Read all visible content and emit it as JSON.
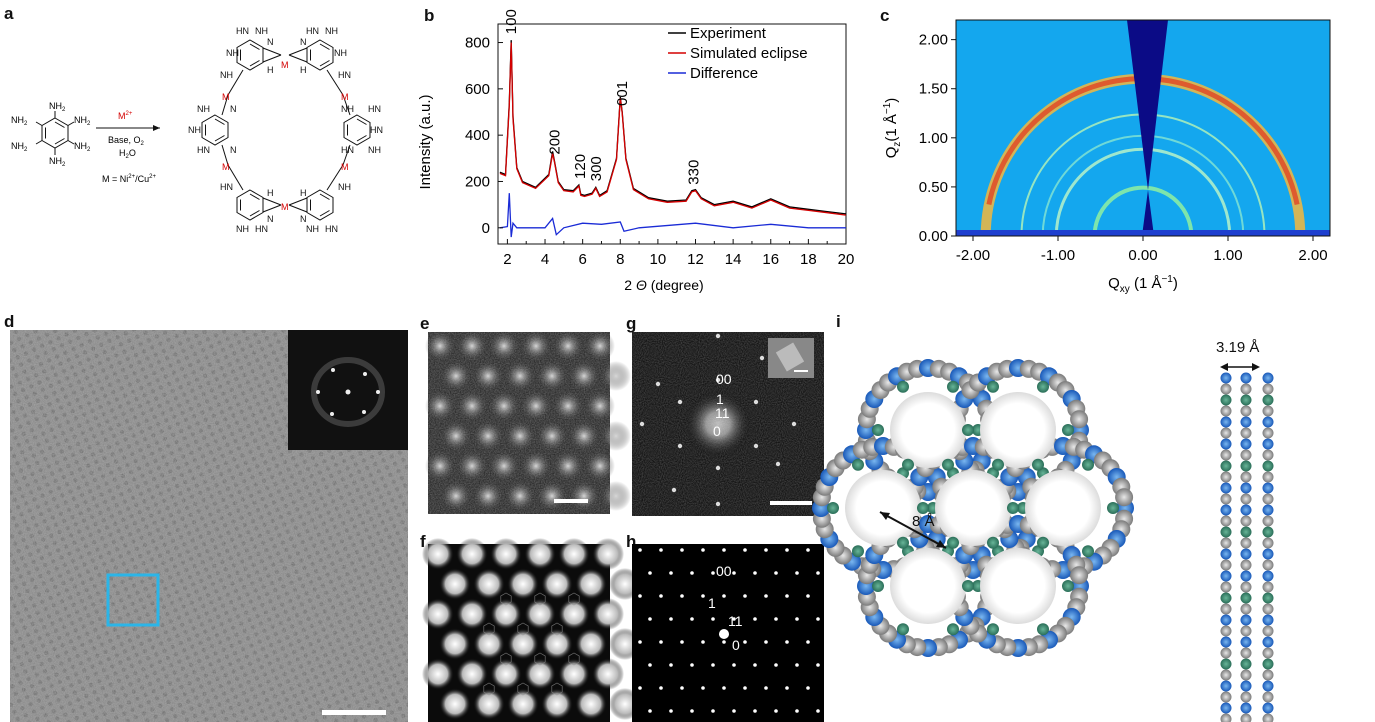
{
  "panels": {
    "a": "a",
    "b": "b",
    "c": "c",
    "d": "d",
    "e": "e",
    "f": "f",
    "g": "g",
    "h": "h",
    "i": "i"
  },
  "panel_a": {
    "reagent": "M",
    "reagent_charge": "2+",
    "condition_line1": "Base, O",
    "condition_o_sub": "2",
    "condition_line2": "H",
    "condition_h_sub": "2",
    "condition_line2_tail": "O",
    "metal_def": "M = Ni",
    "metal_def_ni": "2+",
    "metal_def_mid": "/Cu",
    "metal_def_cu": "2+",
    "nh2": "NH",
    "nh2_sub": "2",
    "nh": "NH",
    "hn": "HN",
    "n": "N",
    "h": "H",
    "metal_symbol": "M"
  },
  "panel_g": {
    "spot_00": "00",
    "spot_1": "1",
    "spot_11": "11",
    "spot_0": "0"
  },
  "panel_h": {
    "spot_00": "00",
    "spot_1": "1",
    "spot_11": "11",
    "spot_0": "0"
  },
  "panel_i": {
    "pore_label": "8 Å",
    "spacing_label": "3.19  Å"
  },
  "chart_data": [
    {
      "panel": "b",
      "type": "line",
      "ylabel": "Intensity (a.u.)",
      "xlabel_prefix": "2 ",
      "xlabel_symbol": "Θ",
      "xlabel_suffix": " (degree)",
      "xlim": [
        1.5,
        20
      ],
      "ylim": [
        -70,
        880
      ],
      "xticks": [
        2,
        4,
        6,
        8,
        10,
        12,
        14,
        16,
        18,
        20
      ],
      "yticks": [
        0,
        200,
        400,
        600,
        800
      ],
      "legend_position": "top-right",
      "series": [
        {
          "name": "Experiment",
          "color": "#000000",
          "x": [
            1.6,
            1.9,
            2.1,
            2.2,
            2.3,
            2.5,
            2.8,
            3.5,
            4.2,
            4.4,
            4.5,
            4.7,
            5.0,
            5.5,
            5.8,
            5.9,
            6.1,
            6.5,
            6.7,
            6.9,
            7.3,
            7.8,
            8.0,
            8.1,
            8.3,
            8.7,
            9.5,
            10.5,
            11.5,
            11.8,
            12.0,
            12.3,
            13.0,
            14.0,
            15.0,
            16.0,
            17.0,
            18.0,
            19.0,
            20.0
          ],
          "y": [
            240,
            230,
            540,
            810,
            480,
            260,
            200,
            175,
            230,
            330,
            290,
            200,
            165,
            160,
            185,
            145,
            140,
            150,
            175,
            140,
            160,
            300,
            565,
            500,
            300,
            170,
            130,
            115,
            120,
            160,
            165,
            130,
            100,
            115,
            90,
            125,
            90,
            80,
            70,
            60
          ]
        },
        {
          "name": "Simulated eclipse",
          "color": "#d40000",
          "x": [
            1.6,
            1.9,
            2.1,
            2.2,
            2.3,
            2.5,
            2.8,
            3.5,
            4.2,
            4.4,
            4.5,
            4.7,
            5.0,
            5.5,
            5.8,
            5.9,
            6.1,
            6.5,
            6.7,
            6.9,
            7.3,
            7.8,
            8.0,
            8.1,
            8.3,
            8.7,
            9.5,
            10.5,
            11.5,
            11.8,
            12.0,
            12.3,
            13.0,
            14.0,
            15.0,
            16.0,
            17.0,
            18.0,
            19.0,
            20.0
          ],
          "y": [
            235,
            225,
            530,
            800,
            470,
            255,
            195,
            170,
            225,
            320,
            285,
            195,
            160,
            155,
            180,
            140,
            135,
            145,
            170,
            135,
            155,
            295,
            560,
            495,
            295,
            165,
            125,
            110,
            115,
            155,
            160,
            125,
            95,
            110,
            85,
            120,
            85,
            75,
            65,
            55
          ]
        },
        {
          "name": "Difference",
          "color": "#1a2bd6",
          "x": [
            1.6,
            2.0,
            2.1,
            2.2,
            2.3,
            2.5,
            3.0,
            4.0,
            4.4,
            4.6,
            5.0,
            6.0,
            7.0,
            8.0,
            8.2,
            9.0,
            12.0,
            14.0,
            16.0,
            18.0,
            20.0
          ],
          "y": [
            0,
            5,
            150,
            -40,
            20,
            0,
            0,
            0,
            40,
            -30,
            0,
            20,
            15,
            25,
            -15,
            0,
            20,
            0,
            15,
            0,
            0
          ]
        }
      ],
      "peak_labels": [
        {
          "x": 2.2,
          "label": "100"
        },
        {
          "x": 4.5,
          "label": "200"
        },
        {
          "x": 5.85,
          "label": "120"
        },
        {
          "x": 6.7,
          "label": "300"
        },
        {
          "x": 8.1,
          "label": "001"
        },
        {
          "x": 11.9,
          "label": "330"
        }
      ]
    },
    {
      "panel": "c",
      "type": "heatmap",
      "ylabel_prefix": "Q",
      "ylabel_sub": "z",
      "ylabel_suffix": "(1 Å",
      "ylabel_sup": "−1",
      "ylabel_close": ")",
      "xlabel_prefix": "Q",
      "xlabel_sub": "xy",
      "xlabel_suffix": " (1 Å",
      "xlabel_sup": "−1",
      "xlabel_close": ")",
      "xlim": [
        -2.2,
        2.2
      ],
      "ylim": [
        0.0,
        2.2
      ],
      "xtick_labels": [
        "-2.00",
        "-1.00",
        "0.00",
        "1.00",
        "2.00"
      ],
      "ytick_labels": [
        "0.00",
        "0.50",
        "1.00",
        "1.50",
        "2.00"
      ],
      "rings_q": [
        0.57,
        1.02,
        1.18,
        1.43,
        1.85
      ]
    }
  ]
}
